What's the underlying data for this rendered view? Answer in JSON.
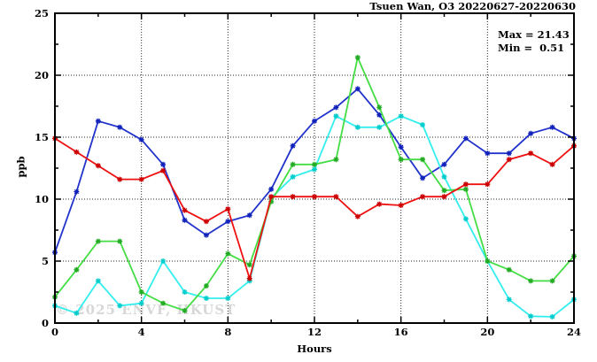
{
  "header": {
    "title": "Tsuen Wan, O3 20220627-20220630"
  },
  "stats": {
    "max_label": "Max = 21.43",
    "min_label": "Min =  0.51",
    "max_value": 21.43,
    "min_value": 0.51
  },
  "axes": {
    "ylabel": "ppb",
    "xlabel": "Hours"
  },
  "watermark": "© 2025 ENVF, HKUST",
  "colors": {
    "axis": "#000000",
    "grid": "#000000",
    "background": "#ffffff"
  },
  "chart_data": {
    "type": "line",
    "title": "Tsuen Wan, O3 20220627-20220630",
    "xlabel": "Hours",
    "ylabel": "ppb",
    "xlim": [
      0,
      24
    ],
    "ylim": [
      0,
      25
    ],
    "x_major_ticks": [
      0,
      4,
      8,
      12,
      16,
      20,
      24
    ],
    "x_minor_step": 2,
    "y_major_ticks": [
      0,
      5,
      10,
      15,
      20,
      25
    ],
    "y_minor_step": 2.5,
    "grid": "dotted lines at major ticks",
    "legend": "none",
    "marker": "asterisk",
    "x": [
      0,
      1,
      2,
      3,
      4,
      5,
      6,
      7,
      8,
      9,
      10,
      11,
      12,
      13,
      14,
      15,
      16,
      17,
      18,
      19,
      20,
      21,
      22,
      23,
      24
    ],
    "series": [
      {
        "name": "series-1-red",
        "color": "#ee1111",
        "marker_color": "#cc0000",
        "values": [
          14.9,
          13.8,
          12.7,
          11.6,
          11.6,
          12.3,
          9.1,
          8.2,
          9.2,
          3.6,
          10.2,
          10.2,
          10.2,
          10.2,
          8.6,
          9.6,
          9.5,
          10.2,
          10.2,
          11.2,
          11.2,
          13.2,
          13.7,
          12.8,
          14.3
        ]
      },
      {
        "name": "series-2-blue",
        "color": "#2233cc",
        "marker_color": "#1122bb",
        "values": [
          5.7,
          10.6,
          16.3,
          15.8,
          14.8,
          12.8,
          8.3,
          7.1,
          8.2,
          8.7,
          10.8,
          14.3,
          16.3,
          17.4,
          18.9,
          16.8,
          14.2,
          11.7,
          12.8,
          14.9,
          13.7,
          13.7,
          15.3,
          15.8,
          14.9
        ]
      },
      {
        "name": "series-3-green",
        "color": "#44dd44",
        "marker_color": "#22aa22",
        "values": [
          2.1,
          4.3,
          6.6,
          6.6,
          2.5,
          1.6,
          1.0,
          3.0,
          5.6,
          4.7,
          9.8,
          12.8,
          12.8,
          13.2,
          21.43,
          17.4,
          13.2,
          13.2,
          10.7,
          10.8,
          5.0,
          4.3,
          3.4,
          3.4,
          5.4
        ]
      },
      {
        "name": "series-4-cyan",
        "color": "#33eeee",
        "marker_color": "#00cccc",
        "values": [
          1.4,
          0.8,
          3.4,
          1.4,
          1.6,
          5.0,
          2.5,
          2.0,
          2.0,
          3.4,
          10.1,
          11.8,
          12.4,
          16.7,
          15.8,
          15.8,
          16.7,
          16.0,
          11.8,
          8.4,
          5.0,
          1.9,
          0.55,
          0.51,
          1.9
        ]
      }
    ]
  }
}
